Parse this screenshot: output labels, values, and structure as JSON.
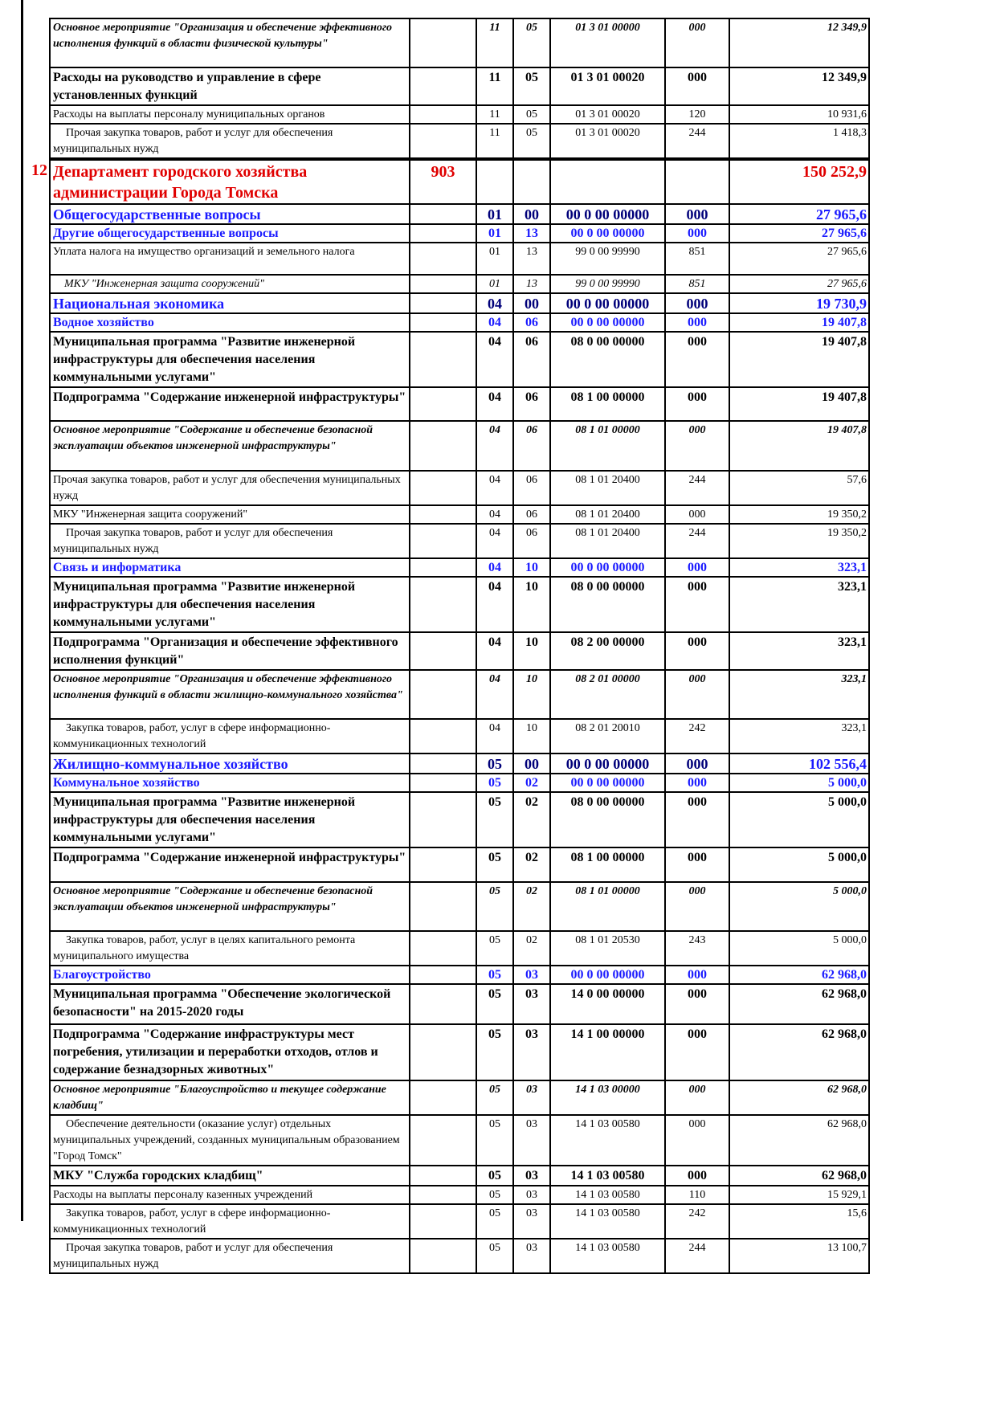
{
  "table": {
    "rows": [
      {
        "num": "",
        "name": "Основное мероприятие \"Организация и обеспечение эффективного исполнения функций в области физической культуры\"",
        "grbs": "",
        "rz": "11",
        "pr": "05",
        "csr": "01 3 01 00000",
        "vr": "000",
        "sum": "12 349,9",
        "style": "it"
      },
      {
        "num": "",
        "name": "Расходы на руководство и управление в сфере установленных функций",
        "grbs": "",
        "rz": "11",
        "pr": "05",
        "csr": "01 3 01 00020",
        "vr": "000",
        "sum": "12 349,9",
        "style": "b"
      },
      {
        "num": "",
        "name": "Расходы на выплаты персоналу муниципальных органов",
        "grbs": "",
        "rz": "11",
        "pr": "05",
        "csr": "01 3 01 00020",
        "vr": "120",
        "sum": "10 931,6",
        "style": "n"
      },
      {
        "num": "",
        "name": "Прочая закупка товаров, работ и услуг для обеспечения муниципальных нужд",
        "grbs": "",
        "rz": "11",
        "pr": "05",
        "csr": "01 3 01 00020",
        "vr": "244",
        "sum": "1 418,3",
        "style": "ni"
      },
      {
        "num": "12",
        "name": "Департамент городского хозяйства администрации Города Томска",
        "grbs": "903",
        "rz": "",
        "pr": "",
        "csr": "",
        "vr": "",
        "sum": "150 252,9",
        "style": "red"
      },
      {
        "num": "",
        "name": "Общегосударственные вопросы",
        "grbs": "",
        "rz": "01",
        "pr": "00",
        "csr": "00 0 00 00000",
        "vr": "000",
        "sum": "27 965,6",
        "style": "sec"
      },
      {
        "num": "",
        "name": "Другие общегосударственные вопросы",
        "grbs": "",
        "rz": "01",
        "pr": "13",
        "csr": "00 0 00 00000",
        "vr": "000",
        "sum": "27 965,6",
        "style": "sub"
      },
      {
        "num": "",
        "name": "Уплата налога на имущество организаций и земельного налога",
        "grbs": "",
        "rz": "01",
        "pr": "13",
        "csr": "99 0 00 99990",
        "vr": "851",
        "sum": "27 965,6",
        "style": "n"
      },
      {
        "num": "",
        "name": "МКУ \"Инженерная защита сооружений\"",
        "grbs": "",
        "rz": "01",
        "pr": "13",
        "csr": "99 0 00 99990",
        "vr": "851",
        "sum": "27 965,6",
        "style": "mi"
      },
      {
        "num": "",
        "name": "Национальная экономика",
        "grbs": "",
        "rz": "04",
        "pr": "00",
        "csr": "00 0 00 00000",
        "vr": "000",
        "sum": "19 730,9",
        "style": "sec"
      },
      {
        "num": "",
        "name": "Водное хозяйство",
        "grbs": "",
        "rz": "04",
        "pr": "06",
        "csr": "00 0 00 00000",
        "vr": "000",
        "sum": "19 407,8",
        "style": "sub"
      },
      {
        "num": "",
        "name": "Муниципальная программа \"Развитие инженерной инфраструктуры для обеспечения населения коммунальными услугами\"",
        "grbs": "",
        "rz": "04",
        "pr": "06",
        "csr": "08 0 00 00000",
        "vr": "000",
        "sum": "19 407,8",
        "style": "b"
      },
      {
        "num": "",
        "name": "Подпрограмма \"Содержание инженерной инфраструктуры\"",
        "grbs": "",
        "rz": "04",
        "pr": "06",
        "csr": "08 1 00 00000",
        "vr": "000",
        "sum": "19 407,8",
        "style": "b"
      },
      {
        "num": "",
        "name": "Основное мероприятие \"Содержание и обеспечение безопасной эксплуатации объектов инженерной инфраструктуры\"",
        "grbs": "",
        "rz": "04",
        "pr": "06",
        "csr": "08 1 01 00000",
        "vr": "000",
        "sum": "19 407,8",
        "style": "it"
      },
      {
        "num": "",
        "name": "Прочая закупка товаров, работ и услуг для обеспечения муниципальных нужд",
        "grbs": "",
        "rz": "04",
        "pr": "06",
        "csr": "08 1 01 20400",
        "vr": "244",
        "sum": "57,6",
        "style": "n"
      },
      {
        "num": "",
        "name": "МКУ \"Инженерная защита сооружений\"",
        "grbs": "",
        "rz": "04",
        "pr": "06",
        "csr": "08 1 01 20400",
        "vr": "000",
        "sum": "19 350,2",
        "style": "n"
      },
      {
        "num": "",
        "name": "Прочая закупка товаров, работ и услуг для обеспечения муниципальных нужд",
        "grbs": "",
        "rz": "04",
        "pr": "06",
        "csr": "08 1 01 20400",
        "vr": "244",
        "sum": "19 350,2",
        "style": "ni"
      },
      {
        "num": "",
        "name": "Связь и информатика",
        "grbs": "",
        "rz": "04",
        "pr": "10",
        "csr": "00 0 00 00000",
        "vr": "000",
        "sum": "323,1",
        "style": "sub"
      },
      {
        "num": "",
        "name": "Муниципальная программа \"Развитие инженерной инфраструктуры для обеспечения населения коммунальными услугами\"",
        "grbs": "",
        "rz": "04",
        "pr": "10",
        "csr": "08 0 00 00000",
        "vr": "000",
        "sum": "323,1",
        "style": "b"
      },
      {
        "num": "",
        "name": "Подпрограмма \"Организация и обеспечение эффективного исполнения функций\"",
        "grbs": "",
        "rz": "04",
        "pr": "10",
        "csr": "08 2 00 00000",
        "vr": "000",
        "sum": "323,1",
        "style": "b"
      },
      {
        "num": "",
        "name": "Основное мероприятие \"Организация и обеспечение эффективного исполнения функций в области жилищно-коммунального хозяйства\"",
        "grbs": "",
        "rz": "04",
        "pr": "10",
        "csr": "08 2 01 00000",
        "vr": "000",
        "sum": "323,1",
        "style": "it"
      },
      {
        "num": "",
        "name": "Закупка товаров, работ, услуг в сфере информационно-коммуникационных технологий",
        "grbs": "",
        "rz": "04",
        "pr": "10",
        "csr": "08 2 01 20010",
        "vr": "242",
        "sum": "323,1",
        "style": "ni"
      },
      {
        "num": "",
        "name": "Жилищно-коммунальное хозяйство",
        "grbs": "",
        "rz": "05",
        "pr": "00",
        "csr": "00 0 00 00000",
        "vr": "000",
        "sum": "102 556,4",
        "style": "sec"
      },
      {
        "num": "",
        "name": "Коммунальное хозяйство",
        "grbs": "",
        "rz": "05",
        "pr": "02",
        "csr": "00 0 00 00000",
        "vr": "000",
        "sum": "5 000,0",
        "style": "sub"
      },
      {
        "num": "",
        "name": "Муниципальная программа \"Развитие инженерной инфраструктуры для обеспечения населения коммунальными услугами\"",
        "grbs": "",
        "rz": "05",
        "pr": "02",
        "csr": "08 0 00 00000",
        "vr": "000",
        "sum": "5 000,0",
        "style": "b"
      },
      {
        "num": "",
        "name": "Подпрограмма \"Содержание инженерной инфраструктуры\"",
        "grbs": "",
        "rz": "05",
        "pr": "02",
        "csr": "08 1 00 00000",
        "vr": "000",
        "sum": "5 000,0",
        "style": "b"
      },
      {
        "num": "",
        "name": "Основное мероприятие \"Содержание и обеспечение безопасной эксплуатации объектов инженерной инфраструктуры\"",
        "grbs": "",
        "rz": "05",
        "pr": "02",
        "csr": "08 1 01 00000",
        "vr": "000",
        "sum": "5 000,0",
        "style": "it"
      },
      {
        "num": "",
        "name": "Закупка товаров, работ, услуг в целях капитального ремонта муниципального имущества",
        "grbs": "",
        "rz": "05",
        "pr": "02",
        "csr": "08 1 01 20530",
        "vr": "243",
        "sum": "5 000,0",
        "style": "ni"
      },
      {
        "num": "",
        "name": "Благоустройство",
        "grbs": "",
        "rz": "05",
        "pr": "03",
        "csr": "00 0 00 00000",
        "vr": "000",
        "sum": "62 968,0",
        "style": "sub"
      },
      {
        "num": "",
        "name": "Муниципальная программа \"Обеспечение экологической безопасности\" на 2015-2020 годы",
        "grbs": "",
        "rz": "05",
        "pr": "03",
        "csr": "14 0 00 00000",
        "vr": "000",
        "sum": "62 968,0",
        "style": "b"
      },
      {
        "num": "",
        "name": "Подпрограмма \"Содержание инфраструктуры мест погребения, утилизации и переработки отходов, отлов и содержание безнадзорных животных\"",
        "grbs": "",
        "rz": "05",
        "pr": "03",
        "csr": "14 1 00 00000",
        "vr": "000",
        "sum": "62 968,0",
        "style": "b"
      },
      {
        "num": "",
        "name": "Основное мероприятие \"Благоустройство и текущее содержание кладбищ\"",
        "grbs": "",
        "rz": "05",
        "pr": "03",
        "csr": "14 1 03 00000",
        "vr": "000",
        "sum": "62 968,0",
        "style": "it"
      },
      {
        "num": "",
        "name": "Обеспечение деятельности (оказание услуг) отдельных муниципальных учреждений, созданных муниципальным образованием \"Город Томск\"",
        "grbs": "",
        "rz": "05",
        "pr": "03",
        "csr": "14 1 03 00580",
        "vr": "000",
        "sum": "62 968,0",
        "style": "ni"
      },
      {
        "num": "",
        "name": "МКУ \"Служба городских кладбищ\"",
        "grbs": "",
        "rz": "05",
        "pr": "03",
        "csr": "14 1 03 00580",
        "vr": "000",
        "sum": "62 968,0",
        "style": "b"
      },
      {
        "num": "",
        "name": "Расходы на выплаты персоналу казенных учреждений",
        "grbs": "",
        "rz": "05",
        "pr": "03",
        "csr": "14 1 03 00580",
        "vr": "110",
        "sum": "15 929,1",
        "style": "n"
      },
      {
        "num": "",
        "name": "Закупка товаров, работ, услуг в сфере информационно-коммуникационных технологий",
        "grbs": "",
        "rz": "05",
        "pr": "03",
        "csr": "14 1 03 00580",
        "vr": "242",
        "sum": "15,6",
        "style": "ni"
      },
      {
        "num": "",
        "name": "Прочая закупка товаров, работ и услуг для обеспечения муниципальных нужд",
        "grbs": "",
        "rz": "05",
        "pr": "03",
        "csr": "14 1 03 00580",
        "vr": "244",
        "sum": "13 100,7",
        "style": "ni"
      }
    ]
  }
}
